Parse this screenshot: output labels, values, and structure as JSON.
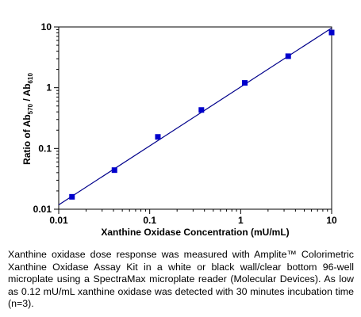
{
  "chart_data": {
    "type": "scatter",
    "xscale": "log",
    "yscale": "log",
    "xlim": [
      0.01,
      10
    ],
    "ylim": [
      0.01,
      10
    ],
    "xticks": [
      "0.01",
      "0.1",
      "1",
      "10"
    ],
    "yticks": [
      "0.01",
      "0.1",
      "1",
      "10"
    ],
    "xlabel": "Xanthine Oxidase Concentration (mU/mL)",
    "ylabel": {
      "prefix": "Ratio of Ab",
      "sub1": "570",
      "mid": " / Ab",
      "sub2": "610"
    },
    "grid": false,
    "legend": "none",
    "series": [
      {
        "x": [
          0.014,
          0.041,
          0.123,
          0.37,
          1.11,
          3.33,
          10
        ],
        "y": [
          0.016,
          0.044,
          0.155,
          0.43,
          1.2,
          3.3,
          8.1
        ],
        "marker": "square",
        "color": "#0000cc"
      }
    ],
    "fit_line": {
      "x": [
        0.01,
        10
      ],
      "y": [
        0.0118,
        9.6
      ],
      "color": "#00008b"
    }
  },
  "caption": "Xanthine oxidase dose response was measured with Amplite™ Colorimetric Xanthine Oxidase Assay Kit in a white or black wall/clear bottom 96-well microplate using a SpectraMax microplate reader (Molecular Devices). As low as 0.12 mU/mL xanthine oxidase was detected with 30 minutes incubation time (n=3)."
}
